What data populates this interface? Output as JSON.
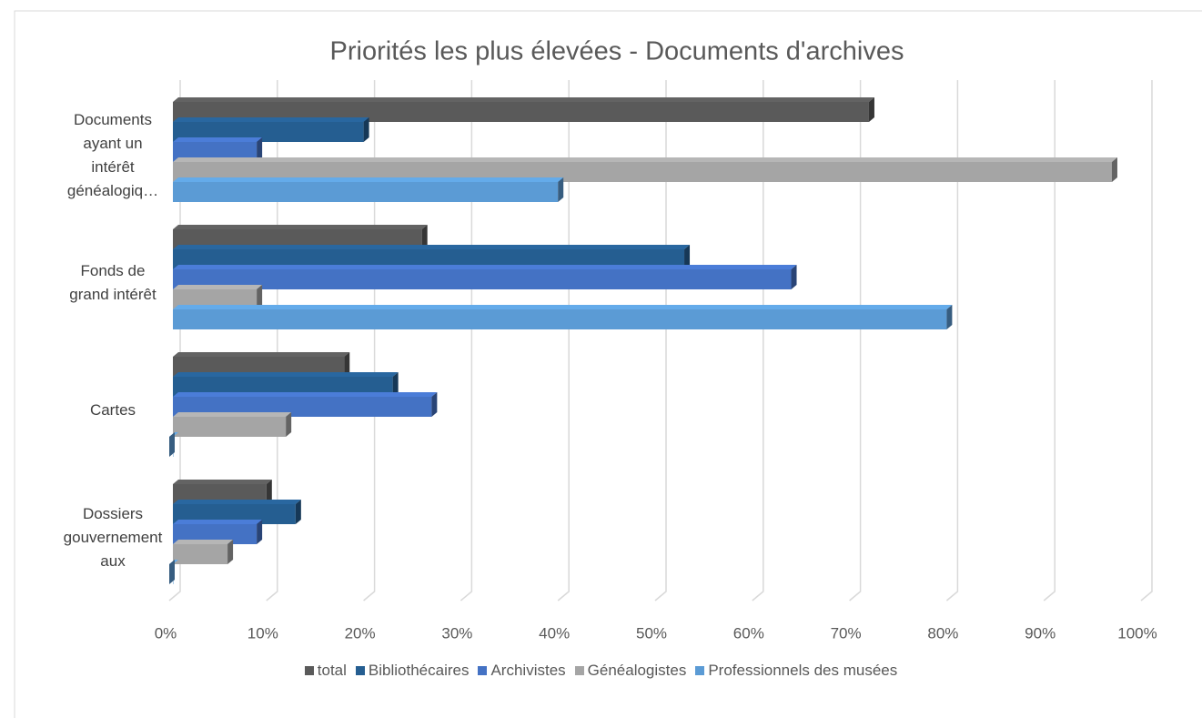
{
  "chart_data": {
    "type": "bar3d_horizontal",
    "title": "Priorités les plus élevées - Documents d'archives",
    "categories": [
      "Documents ayant un intérêt généalogiq…",
      "Fonds de grand intérêt",
      "Cartes",
      "Dossiers gouvernementaux"
    ],
    "series": [
      {
        "name": "total",
        "color": "#5a5a5a",
        "values": [
          72,
          26,
          18,
          10
        ]
      },
      {
        "name": "Bibliothécaires",
        "color": "#255e91",
        "values": [
          20,
          53,
          23,
          13
        ]
      },
      {
        "name": "Archivistes",
        "color": "#4472c4",
        "values": [
          9,
          64,
          27,
          9
        ]
      },
      {
        "name": "Généalogistes",
        "color": "#a5a5a5",
        "values": [
          97,
          9,
          12,
          6
        ]
      },
      {
        "name": "Professionnels des musées",
        "color": "#5b9bd5",
        "values": [
          40,
          80,
          0,
          0
        ]
      }
    ],
    "xlim": [
      0,
      100
    ],
    "xticks": [
      {
        "value": 0,
        "label": "0%"
      },
      {
        "value": 10,
        "label": "10%"
      },
      {
        "value": 20,
        "label": "20%"
      },
      {
        "value": 30,
        "label": "30%"
      },
      {
        "value": 40,
        "label": "40%"
      },
      {
        "value": 50,
        "label": "50%"
      },
      {
        "value": 60,
        "label": "60%"
      },
      {
        "value": 70,
        "label": "70%"
      },
      {
        "value": 80,
        "label": "80%"
      },
      {
        "value": 90,
        "label": "90%"
      },
      {
        "value": 100,
        "label": "100%"
      }
    ],
    "grid": true,
    "legend": "bottom"
  }
}
